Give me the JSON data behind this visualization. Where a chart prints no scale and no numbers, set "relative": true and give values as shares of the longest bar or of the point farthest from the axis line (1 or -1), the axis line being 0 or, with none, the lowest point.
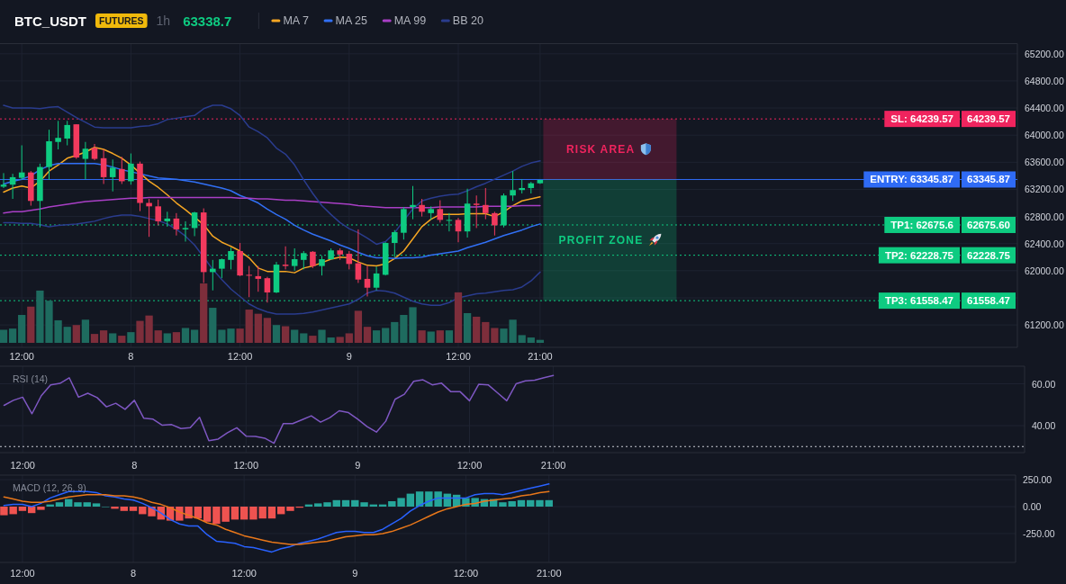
{
  "chart_data": [
    {
      "type": "candlestick",
      "title": "BTC_USDT",
      "annotations": [
        "FUTURES",
        "1h",
        "63338.7",
        "RISK AREA",
        "PROFIT ZONE",
        {
          "text": "64239.57",
          "y": 64239.57
        },
        {
          "text": "63345.87",
          "y": 63345.87
        },
        {
          "text": "62675.60",
          "y": 62675.6
        },
        {
          "text": "62228.75",
          "y": 62228.75
        },
        {
          "text": "61558.47",
          "y": 61558.47
        }
      ],
      "categories": [
        null,
        null,
        "12:00",
        null,
        null,
        null,
        null,
        null,
        null,
        null,
        null,
        null,
        null,
        null,
        "8",
        null,
        null,
        null,
        null,
        null,
        null,
        null,
        null,
        null,
        null,
        null,
        "12:00",
        null,
        null,
        null,
        null,
        null,
        null,
        null,
        null,
        null,
        null,
        null,
        "9",
        null,
        null,
        null,
        null,
        null,
        null,
        null,
        null,
        null,
        null,
        null,
        "12:00",
        null,
        null,
        null,
        null,
        null,
        null,
        null,
        null,
        "21:00"
      ],
      "ohlc": [
        [
          63240,
          63440,
          63220,
          63270
        ],
        [
          63270,
          63430,
          63060,
          63380
        ],
        [
          63370,
          63850,
          63340,
          63450
        ],
        [
          63450,
          63470,
          62960,
          63030
        ],
        [
          63030,
          63580,
          62640,
          63530
        ],
        [
          63530,
          64080,
          63340,
          63910
        ],
        [
          63900,
          64210,
          63790,
          63960
        ],
        [
          63950,
          64210,
          63850,
          64150
        ],
        [
          64160,
          64160,
          63650,
          63670
        ],
        [
          63650,
          63900,
          63350,
          63800
        ],
        [
          63810,
          63870,
          63630,
          63650
        ],
        [
          63660,
          63790,
          63280,
          63380
        ],
        [
          63380,
          63640,
          63170,
          63520
        ],
        [
          63500,
          63680,
          63280,
          63320
        ],
        [
          63320,
          63730,
          63270,
          63580
        ],
        [
          63580,
          63610,
          62880,
          63000
        ],
        [
          63000,
          63060,
          62500,
          62950
        ],
        [
          62950,
          63050,
          62670,
          62730
        ],
        [
          62730,
          62870,
          62650,
          62770
        ],
        [
          62770,
          62850,
          62520,
          62610
        ],
        [
          62610,
          62730,
          62430,
          62630
        ],
        [
          62630,
          62870,
          62510,
          62860
        ],
        [
          62860,
          62920,
          61820,
          61980
        ],
        [
          61980,
          62160,
          61710,
          62030
        ],
        [
          62030,
          62180,
          61890,
          62170
        ],
        [
          62160,
          62340,
          62020,
          62290
        ],
        [
          62290,
          62410,
          61920,
          61930
        ],
        [
          61940,
          62070,
          61610,
          61930
        ],
        [
          61920,
          62070,
          61690,
          61880
        ],
        [
          61890,
          61910,
          61530,
          61680
        ],
        [
          61680,
          62130,
          61670,
          62090
        ],
        [
          62090,
          62360,
          62020,
          62070
        ],
        [
          62070,
          62330,
          62000,
          62170
        ],
        [
          62160,
          62290,
          62020,
          62260
        ],
        [
          62280,
          62290,
          62040,
          62070
        ],
        [
          62070,
          62220,
          61930,
          62170
        ],
        [
          62170,
          62330,
          62160,
          62300
        ],
        [
          62300,
          62330,
          62160,
          62240
        ],
        [
          62250,
          62290,
          62020,
          62100
        ],
        [
          62110,
          62610,
          61820,
          61870
        ],
        [
          61880,
          62070,
          61620,
          61750
        ],
        [
          61750,
          62060,
          61710,
          61960
        ],
        [
          61940,
          62420,
          61930,
          62410
        ],
        [
          62410,
          62600,
          62200,
          62570
        ],
        [
          62560,
          62940,
          62460,
          62910
        ],
        [
          62940,
          63250,
          62760,
          62970
        ],
        [
          62970,
          63060,
          62800,
          62870
        ],
        [
          62850,
          62950,
          62750,
          62910
        ],
        [
          62910,
          63040,
          62710,
          62750
        ],
        [
          62740,
          62850,
          62580,
          62750
        ],
        [
          62750,
          62780,
          62420,
          62580
        ],
        [
          62580,
          63210,
          62490,
          62990
        ],
        [
          62990,
          63110,
          62630,
          62970
        ],
        [
          62970,
          63220,
          62760,
          62850
        ],
        [
          62850,
          62870,
          62520,
          62670
        ],
        [
          62670,
          63140,
          62640,
          63110
        ],
        [
          63110,
          63470,
          63030,
          63190
        ],
        [
          63190,
          63350,
          63140,
          63220
        ],
        [
          63220,
          63310,
          63140,
          63290
        ],
        [
          63290,
          63340,
          63280,
          63340
        ]
      ],
      "colors": [
        "#0ecb81",
        "#0ecb81",
        "#0ecb81",
        "#f23a5e",
        "#0ecb81",
        "#0ecb81",
        "#0ecb81",
        "#0ecb81",
        "#f23a5e",
        "#0ecb81",
        "#f23a5e",
        "#f23a5e",
        "#0ecb81",
        "#f23a5e",
        "#0ecb81",
        "#f23a5e",
        "#f23a5e",
        "#f23a5e",
        "#0ecb81",
        "#f23a5e",
        "#0ecb81",
        "#0ecb81",
        "#f23a5e",
        "#0ecb81",
        "#0ecb81",
        "#0ecb81",
        "#f23a5e",
        "#f23a5e",
        "#f23a5e",
        "#f23a5e",
        "#0ecb81",
        "#f23a5e",
        "#0ecb81",
        "#0ecb81",
        "#f23a5e",
        "#0ecb81",
        "#0ecb81",
        "#f23a5e",
        "#f23a5e",
        "#f23a5e",
        "#f23a5e",
        "#0ecb81",
        "#0ecb81",
        "#0ecb81",
        "#0ecb81",
        "#0ecb81",
        "#f23a5e",
        "#0ecb81",
        "#f23a5e",
        "#0ecb81",
        "#f23a5e",
        "#0ecb81",
        "#f23a5e",
        "#f23a5e",
        "#f23a5e",
        "#0ecb81",
        "#0ecb81",
        "#0ecb81",
        "#0ecb81",
        "#0ecb81"
      ],
      "series": [
        {
          "name": "MA 7",
          "type": "line",
          "color": "#f5a623",
          "values": [
            63160,
            63220,
            63250,
            63220,
            63320,
            63470,
            63560,
            63660,
            63700,
            63750,
            63820,
            63790,
            63730,
            63660,
            63560,
            63440,
            63320,
            63230,
            63120,
            63000,
            62900,
            62790,
            62680,
            62510,
            62420,
            62360,
            62290,
            62190,
            62040,
            61990,
            61990,
            61990,
            61970,
            62040,
            62070,
            62120,
            62170,
            62200,
            62190,
            62130,
            62080,
            62070,
            62100,
            62180,
            62290,
            62470,
            62650,
            62760,
            62830,
            62830,
            62830,
            62840,
            62840,
            62840,
            62800,
            62870,
            62960,
            63030,
            63060,
            63090
          ]
        },
        {
          "name": "MA 25",
          "type": "line",
          "color": "#3170f5",
          "values": [
            63280,
            63320,
            63350,
            63400,
            63490,
            63550,
            63580,
            63580,
            63580,
            63580,
            63580,
            63560,
            63530,
            63490,
            63460,
            63430,
            63400,
            63370,
            63360,
            63350,
            63330,
            63310,
            63280,
            63250,
            63220,
            63180,
            63110,
            63060,
            63000,
            62910,
            62830,
            62760,
            62670,
            62600,
            62540,
            62490,
            62440,
            62380,
            62330,
            62270,
            62220,
            62190,
            62190,
            62180,
            62190,
            62190,
            62200,
            62230,
            62250,
            62270,
            62290,
            62340,
            62380,
            62420,
            62470,
            62520,
            62560,
            62600,
            62650,
            62690
          ]
        },
        {
          "name": "MA 99",
          "type": "line",
          "color": "#a93fc6",
          "values": [
            62850,
            62870,
            62870,
            62890,
            62910,
            62940,
            62960,
            62980,
            63000,
            63020,
            63030,
            63040,
            63050,
            63060,
            63070,
            63070,
            63080,
            63080,
            63080,
            63080,
            63080,
            63080,
            63080,
            63080,
            63080,
            63080,
            63070,
            63070,
            63060,
            63060,
            63050,
            63040,
            63040,
            63030,
            63020,
            63010,
            63000,
            62990,
            62980,
            62960,
            62950,
            62940,
            62930,
            62930,
            62930,
            62930,
            62930,
            62930,
            62940,
            62940,
            62940,
            62940,
            62940,
            62950,
            62950,
            62950,
            62950,
            62960,
            62960,
            62960
          ]
        },
        {
          "name": "BB 20",
          "type": "line",
          "color": "#2a3c8e",
          "values": [
            64440,
            64400,
            64400,
            64400,
            64390,
            64410,
            64420,
            64340,
            64260,
            64190,
            64120,
            64110,
            64110,
            64110,
            64110,
            64130,
            64140,
            64170,
            64230,
            64250,
            64270,
            64290,
            64390,
            64440,
            64440,
            64390,
            64290,
            64120,
            64050,
            63960,
            63810,
            63720,
            63560,
            63340,
            63140,
            62960,
            62830,
            62710,
            62620,
            62560,
            62480,
            62390,
            62430,
            62560,
            62740,
            62910,
            63030,
            63070,
            63100,
            63120,
            63130,
            63180,
            63240,
            63290,
            63350,
            63410,
            63470,
            63540,
            63590,
            63620
          ]
        },
        {
          "type": "line",
          "color": "#2a3c8e",
          "values": [
            62710,
            62710,
            62700,
            62700,
            62680,
            62650,
            62670,
            62680,
            62690,
            62710,
            62730,
            62770,
            62800,
            62820,
            62820,
            62800,
            62770,
            62740,
            62690,
            62610,
            62510,
            62380,
            62200,
            62020,
            61870,
            61730,
            61620,
            61510,
            61440,
            61390,
            61360,
            61360,
            61360,
            61370,
            61390,
            61420,
            61450,
            61480,
            61510,
            61580,
            61670,
            61710,
            61700,
            61670,
            61610,
            61550,
            61510,
            61490,
            61490,
            61530,
            61600,
            61630,
            61660,
            61670,
            61690,
            61710,
            61720,
            61760,
            61850,
            61980
          ]
        }
      ],
      "ylim": [
        60870,
        65350
      ],
      "yticks": [
        {
          "value": 61200,
          "label": "61200.00"
        },
        {
          "value": 61600,
          "label": null
        },
        {
          "value": 62000,
          "label": "62000.00"
        },
        {
          "value": 62400,
          "label": "62400.00"
        },
        {
          "value": 62800,
          "label": "62800.00"
        },
        {
          "value": 63200,
          "label": "63200.00"
        },
        {
          "value": 63600,
          "label": "63600.00"
        },
        {
          "value": 64000,
          "label": "64000.00"
        },
        {
          "value": 64400,
          "label": "64400.00"
        },
        {
          "value": 64800,
          "label": "64800.00"
        },
        {
          "value": 65200,
          "label": "65200.00"
        }
      ],
      "grid": true,
      "legend": "top",
      "ref_lines": [
        {
          "axis": "y",
          "value": 64239.57,
          "label": "SL: 64239.57",
          "color": "#f0245e",
          "line_style": "dotted"
        },
        {
          "axis": "y",
          "value": 63345.87,
          "label": "ENTRY: 63345.87",
          "color": "#2f6bf5",
          "line_style": "solid"
        },
        {
          "axis": "y",
          "value": 62675.6,
          "label": "TP1: 62675.6",
          "color": "#0ecb81",
          "line_style": "dotted"
        },
        {
          "axis": "y",
          "value": 62228.75,
          "label": "TP2: 62228.75",
          "color": "#0ecb81",
          "line_style": "dotted"
        },
        {
          "axis": "y",
          "value": 61558.47,
          "label": "TP3: 61558.47",
          "color": "#0ecb81",
          "line_style": "dotted"
        }
      ]
    },
    {
      "type": "bar",
      "relative": true,
      "categories": [
        null,
        null,
        null,
        null,
        null,
        null,
        null,
        null,
        null,
        null,
        null,
        null,
        null,
        null,
        null,
        null,
        null,
        null,
        null,
        null,
        null,
        null,
        null,
        null,
        null,
        null,
        null,
        null,
        null,
        null,
        null,
        null,
        null,
        null,
        null,
        null,
        null,
        null,
        null,
        null,
        null,
        null,
        null,
        null,
        null,
        null,
        null,
        null,
        null,
        null,
        null,
        null,
        null,
        null,
        null,
        null,
        null,
        null,
        null,
        null
      ],
      "values": [
        0.22,
        0.24,
        0.47,
        0.61,
        0.88,
        0.71,
        0.38,
        0.27,
        0.3,
        0.39,
        0.15,
        0.21,
        0.16,
        0.12,
        0.18,
        0.37,
        0.46,
        0.21,
        0.16,
        0.18,
        0.25,
        0.22,
        1,
        0.59,
        0.22,
        0.24,
        0.24,
        0.56,
        0.49,
        0.42,
        0.3,
        0.28,
        0.22,
        0.16,
        0.12,
        0.22,
        0.09,
        0.1,
        0.16,
        0.54,
        0.27,
        0.21,
        0.25,
        0.35,
        0.47,
        0.6,
        0.21,
        0.19,
        0.21,
        0.21,
        0.85,
        0.5,
        0.44,
        0.35,
        0.25,
        0.24,
        0.39,
        0.13,
        0.09,
        0.05
      ],
      "colors": [
        "#1e6b5f",
        "#1e6b5f",
        "#1e6b5f",
        "#7d2e3b",
        "#1e6b5f",
        "#1e6b5f",
        "#1e6b5f",
        "#1e6b5f",
        "#7d2e3b",
        "#1e6b5f",
        "#7d2e3b",
        "#7d2e3b",
        "#1e6b5f",
        "#7d2e3b",
        "#1e6b5f",
        "#7d2e3b",
        "#7d2e3b",
        "#7d2e3b",
        "#1e6b5f",
        "#7d2e3b",
        "#1e6b5f",
        "#1e6b5f",
        "#7d2e3b",
        "#1e6b5f",
        "#1e6b5f",
        "#1e6b5f",
        "#7d2e3b",
        "#7d2e3b",
        "#7d2e3b",
        "#7d2e3b",
        "#1e6b5f",
        "#7d2e3b",
        "#1e6b5f",
        "#1e6b5f",
        "#7d2e3b",
        "#1e6b5f",
        "#1e6b5f",
        "#7d2e3b",
        "#7d2e3b",
        "#7d2e3b",
        "#7d2e3b",
        "#1e6b5f",
        "#1e6b5f",
        "#1e6b5f",
        "#1e6b5f",
        "#1e6b5f",
        "#7d2e3b",
        "#1e6b5f",
        "#7d2e3b",
        "#1e6b5f",
        "#7d2e3b",
        "#1e6b5f",
        "#7d2e3b",
        "#7d2e3b",
        "#7d2e3b",
        "#1e6b5f",
        "#1e6b5f",
        "#1e6b5f",
        "#1e6b5f",
        "#1e6b5f"
      ]
    },
    {
      "type": "line",
      "title": "RSI (14)",
      "categories": [
        null,
        null,
        "12:00",
        null,
        null,
        null,
        null,
        null,
        null,
        null,
        null,
        null,
        null,
        null,
        "8",
        null,
        null,
        null,
        null,
        null,
        null,
        null,
        null,
        null,
        null,
        null,
        "12:00",
        null,
        null,
        null,
        null,
        null,
        null,
        null,
        null,
        null,
        null,
        null,
        "9",
        null,
        null,
        null,
        null,
        null,
        null,
        null,
        null,
        null,
        null,
        null,
        "12:00",
        null,
        null,
        null,
        null,
        null,
        null,
        null,
        null,
        "21:00"
      ],
      "series": [
        {
          "color": "#7e57c2",
          "values": [
            49.7,
            52.1,
            53.6,
            45.7,
            54.3,
            59.5,
            60.2,
            62.9,
            53.6,
            55.5,
            53.4,
            49.0,
            50.7,
            47.8,
            52.1,
            43.6,
            43.1,
            40.2,
            40.5,
            38.6,
            39.0,
            44.0,
            32.8,
            33.6,
            36.6,
            39.0,
            35.0,
            34.8,
            34.0,
            31.6,
            41.0,
            41.0,
            42.8,
            44.7,
            41.7,
            43.8,
            47.1,
            46.2,
            43.1,
            39.5,
            36.9,
            42.1,
            52.6,
            55.0,
            61.2,
            61.9,
            59.5,
            60.3,
            56.2,
            56.2,
            51.9,
            59.8,
            59.5,
            55.7,
            51.9,
            60.0,
            61.4,
            61.7,
            62.9,
            64.0
          ]
        }
      ],
      "ylim": [
        27.1,
        68.4
      ],
      "yticks": [
        {
          "value": 40,
          "label": "40.00"
        },
        {
          "value": 60,
          "label": "60.00"
        }
      ],
      "grid": true,
      "ref_lines": [
        {
          "axis": "y",
          "value": 30,
          "color": "#c9ccd4",
          "line_style": "dotted"
        }
      ]
    },
    {
      "type": "bar",
      "title": "MACD (12, 26, 9)",
      "categories": [
        null,
        null,
        "12:00",
        null,
        null,
        null,
        null,
        null,
        null,
        null,
        null,
        null,
        null,
        null,
        "8",
        null,
        null,
        null,
        null,
        null,
        null,
        null,
        null,
        null,
        null,
        null,
        "12:00",
        null,
        null,
        null,
        null,
        null,
        null,
        null,
        null,
        null,
        null,
        null,
        "9",
        null,
        null,
        null,
        null,
        null,
        null,
        null,
        null,
        null,
        null,
        null,
        "12:00",
        null,
        null,
        null,
        null,
        null,
        null,
        null,
        null,
        "21:00"
      ],
      "series": [
        {
          "type": "bar",
          "values": [
            -80,
            -70,
            -40,
            -60,
            -30,
            20,
            40,
            70,
            40,
            40,
            30,
            0,
            -20,
            -40,
            -40,
            -70,
            -90,
            -120,
            -130,
            -130,
            -110,
            -110,
            -140,
            -160,
            -140,
            -120,
            -120,
            -120,
            -110,
            -110,
            -70,
            -40,
            -10,
            20,
            30,
            40,
            60,
            60,
            60,
            40,
            20,
            20,
            50,
            80,
            120,
            140,
            140,
            140,
            120,
            110,
            80,
            80,
            70,
            70,
            40,
            50,
            60,
            60,
            60,
            60
          ],
          "colors": [
            "#ef5350",
            "#ef5350",
            "#ef5350",
            "#ef5350",
            "#ef5350",
            "#26a69a",
            "#26a69a",
            "#26a69a",
            "#26a69a",
            "#26a69a",
            "#26a69a",
            "#26a69a",
            "#ef5350",
            "#ef5350",
            "#ef5350",
            "#ef5350",
            "#ef5350",
            "#ef5350",
            "#ef5350",
            "#ef5350",
            "#ef5350",
            "#ef5350",
            "#ef5350",
            "#ef5350",
            "#ef5350",
            "#ef5350",
            "#ef5350",
            "#ef5350",
            "#ef5350",
            "#ef5350",
            "#ef5350",
            "#ef5350",
            "#ef5350",
            "#26a69a",
            "#26a69a",
            "#26a69a",
            "#26a69a",
            "#26a69a",
            "#26a69a",
            "#26a69a",
            "#26a69a",
            "#26a69a",
            "#26a69a",
            "#26a69a",
            "#26a69a",
            "#26a69a",
            "#26a69a",
            "#26a69a",
            "#26a69a",
            "#26a69a",
            "#26a69a",
            "#26a69a",
            "#26a69a",
            "#26a69a",
            "#26a69a",
            "#26a69a",
            "#26a69a",
            "#26a69a",
            "#26a69a",
            "#26a69a"
          ]
        },
        {
          "type": "line",
          "color": "#2962ff",
          "values": [
            10,
            20,
            20,
            0,
            30,
            80,
            110,
            140,
            140,
            140,
            130,
            100,
            90,
            70,
            60,
            30,
            -10,
            -60,
            -120,
            -160,
            -180,
            -180,
            -260,
            -320,
            -330,
            -340,
            -370,
            -380,
            -400,
            -420,
            -390,
            -370,
            -340,
            -320,
            -300,
            -270,
            -240,
            -230,
            -230,
            -240,
            -240,
            -210,
            -160,
            -110,
            -40,
            10,
            50,
            80,
            80,
            80,
            80,
            110,
            120,
            120,
            110,
            130,
            150,
            170,
            190,
            210
          ]
        },
        {
          "type": "line",
          "color": "#e8771a",
          "values": [
            90,
            70,
            50,
            40,
            40,
            50,
            70,
            90,
            100,
            110,
            110,
            110,
            100,
            100,
            90,
            70,
            40,
            20,
            -10,
            -50,
            -80,
            -110,
            -150,
            -170,
            -210,
            -240,
            -270,
            -290,
            -310,
            -330,
            -340,
            -350,
            -350,
            -340,
            -330,
            -320,
            -300,
            -280,
            -270,
            -260,
            -260,
            -250,
            -230,
            -200,
            -170,
            -130,
            -90,
            -50,
            -20,
            0,
            20,
            30,
            50,
            60,
            70,
            80,
            100,
            110,
            130,
            140
          ]
        }
      ],
      "ylim": [
        -516.7,
        291.7
      ],
      "yticks": [
        {
          "value": -250,
          "label": "-250.00"
        },
        {
          "value": 0,
          "label": "0.00"
        },
        {
          "value": 250,
          "label": "250.00"
        }
      ],
      "grid": true
    }
  ]
}
